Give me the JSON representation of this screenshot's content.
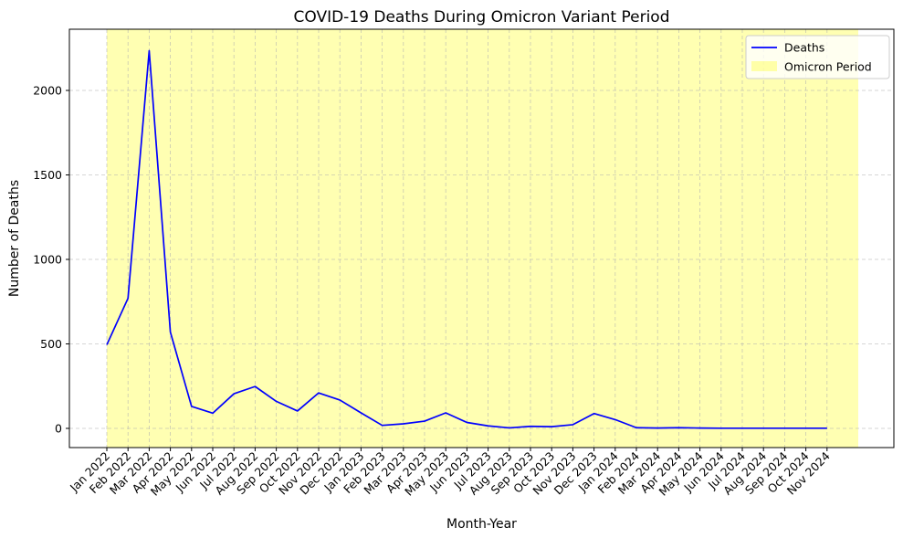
{
  "chart_data": {
    "type": "line",
    "title": "COVID-19 Deaths During Omicron Variant Period",
    "xlabel": "Month-Year",
    "ylabel": "Number of Deaths",
    "categories": [
      "Jan 2022",
      "Feb 2022",
      "Mar 2022",
      "Apr 2022",
      "May 2022",
      "Jun 2022",
      "Jul 2022",
      "Aug 2022",
      "Sep 2022",
      "Oct 2022",
      "Nov 2022",
      "Dec 2022",
      "Jan 2023",
      "Feb 2023",
      "Mar 2023",
      "Apr 2023",
      "May 2023",
      "Jun 2023",
      "Jul 2023",
      "Aug 2023",
      "Sep 2023",
      "Oct 2023",
      "Nov 2023",
      "Dec 2023",
      "Jan 2024",
      "Feb 2024",
      "Mar 2024",
      "Apr 2024",
      "May 2024",
      "Jun 2024",
      "Jul 2024",
      "Aug 2024",
      "Sep 2024",
      "Oct 2024",
      "Nov 2024"
    ],
    "series": [
      {
        "name": "Deaths",
        "color": "#0000ff",
        "values": [
          495,
          770,
          2235,
          570,
          130,
          90,
          205,
          248,
          160,
          103,
          210,
          168,
          92,
          18,
          27,
          43,
          92,
          35,
          15,
          3,
          12,
          10,
          22,
          88,
          52,
          4,
          2,
          4,
          2,
          1,
          1,
          1,
          1,
          1,
          1
        ]
      }
    ],
    "shaded_region": {
      "name": "Omicron Period",
      "color": "#ffff00",
      "from": "Jan 2022",
      "to": "end of axis"
    },
    "yticks": [
      0,
      500,
      1000,
      1500,
      2000
    ],
    "ylim": [
      -110,
      2330
    ],
    "grid": true,
    "legend_position": "top-right"
  }
}
